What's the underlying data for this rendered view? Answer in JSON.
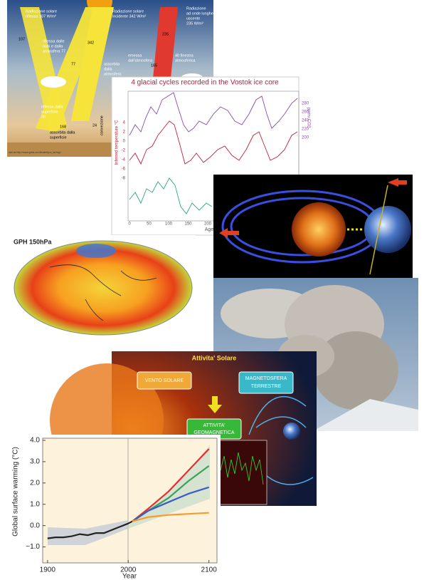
{
  "energy": {
    "labels": [
      "Radiazione solare",
      "riflessa 107 W/m²",
      "Radiazione solare",
      "incidente 342 W/m²",
      "Radiazione",
      "ad onde lunghe",
      "uscente",
      "235 W/m²",
      "107",
      "342",
      "235",
      "riflessa dalle",
      "nubi e dalla",
      "atmosfera 77",
      "77",
      "assorbita",
      "dalla",
      "atmosfera",
      "emessa",
      "dall'atmosfera",
      "40 finestra",
      "atmosferica",
      "165",
      "riflessa dalla",
      "superficie",
      "30",
      "168",
      "assorbita dalla",
      "superficie",
      "24",
      "convezione",
      "dati da http://www.grida.no/climate/ipcc_tar/wg1"
    ]
  },
  "vostok": {
    "title": "4 glacial cycles recorded in the Vostok ice core",
    "y_label": "Inferred temperature °C",
    "y2_label": "ppmv CO2",
    "x_label": "Age",
    "yticks": [
      "4",
      "2",
      "0",
      "-2",
      "-4",
      "-6",
      "-8"
    ],
    "y2ticks": [
      "280",
      "260",
      "240",
      "220",
      "200"
    ],
    "xticks": [
      "0",
      "50",
      "100",
      "150",
      "200"
    ]
  },
  "map": {
    "title": "GPH 150hPa"
  },
  "solar": {
    "title": "Attivita' Solare",
    "boxes": [
      "VENTO SOLARE",
      "MAGNETOSFERA",
      "TERRESTRE",
      "ATTIVITA'",
      "GEOMAGNETICA"
    ]
  },
  "chart_data": {
    "type": "line",
    "y_label": "Global surface warming (°C)",
    "x_label": "Year",
    "xlim": [
      1894,
      2110
    ],
    "ylim": [
      -1.75,
      4.1
    ],
    "xticks": [
      1900,
      2000,
      2100
    ],
    "yticks": [
      {
        "value": 4,
        "label": "4.0"
      },
      {
        "value": 3,
        "label": "3.0"
      },
      {
        "value": 2,
        "label": "2.0"
      },
      {
        "value": 1,
        "label": "1.0"
      },
      {
        "value": 0,
        "label": "0.0"
      },
      {
        "value": -1,
        "label": "−1.0"
      }
    ],
    "series": [
      {
        "color": "#222222",
        "x": [
          1900,
          1910,
          1920,
          1930,
          1940,
          1950,
          1960,
          1970,
          1980,
          1990,
          2000,
          2005
        ],
        "values": [
          -0.6,
          -0.55,
          -0.55,
          -0.5,
          -0.4,
          -0.45,
          -0.35,
          -0.35,
          -0.2,
          -0.05,
          0.1,
          0.2
        ]
      },
      {
        "color": "#e03030",
        "x": [
          2005,
          2025,
          2050,
          2075,
          2100
        ],
        "values": [
          0.2,
          0.8,
          1.6,
          2.6,
          3.6
        ]
      },
      {
        "color": "#3aa35a",
        "x": [
          2005,
          2025,
          2050,
          2075,
          2100
        ],
        "values": [
          0.2,
          0.7,
          1.3,
          2.1,
          2.8
        ]
      },
      {
        "color": "#3a5cc8",
        "x": [
          2005,
          2025,
          2050,
          2075,
          2100
        ],
        "values": [
          0.2,
          0.7,
          1.1,
          1.5,
          1.8
        ]
      },
      {
        "color": "#f59a30",
        "x": [
          2005,
          2025,
          2050,
          2075,
          2100
        ],
        "values": [
          0.2,
          0.4,
          0.5,
          0.55,
          0.6
        ]
      }
    ]
  }
}
